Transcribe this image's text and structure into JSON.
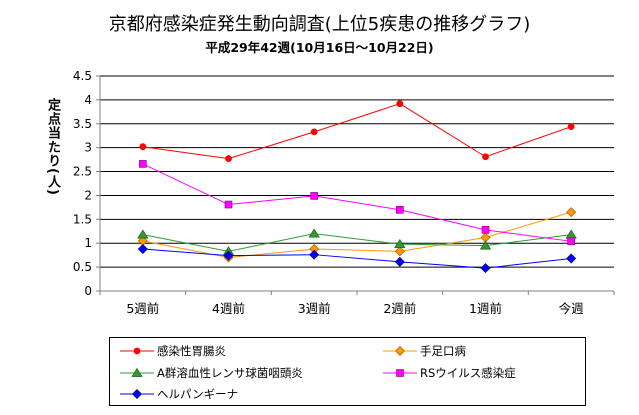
{
  "chart_data": {
    "type": "line",
    "title": "京都府感染症発生動向調査(上位5疾患の推移グラフ)",
    "subtitle": "平成29年42週(10月16日～10月22日)",
    "ylabel": "定点当たり(人)",
    "xlabel": "",
    "categories": [
      "5週前",
      "4週前",
      "3週前",
      "2週前",
      "1週前",
      "今週"
    ],
    "ylim": [
      0,
      4.5
    ],
    "yticks": [
      "0",
      "0.5",
      "1",
      "1.5",
      "2",
      "2.5",
      "3",
      "3.5",
      "4",
      "4.5"
    ],
    "grid": true,
    "legend_position": "bottom",
    "series": [
      {
        "name": "感染性胃腸炎",
        "color": "#ff0000",
        "marker": "circle",
        "values": [
          3.02,
          2.77,
          3.33,
          3.92,
          2.81,
          3.44
        ]
      },
      {
        "name": "手足口病",
        "color": "#ff9900",
        "marker": "diamond",
        "values": [
          1.05,
          0.7,
          0.88,
          0.83,
          1.12,
          1.65
        ]
      },
      {
        "name": "A群溶血性レンサ球菌咽頭炎",
        "color": "#339933",
        "marker": "triangle",
        "values": [
          1.18,
          0.83,
          1.2,
          0.98,
          0.95,
          1.18
        ]
      },
      {
        "name": "RSウイルス感染症",
        "color": "#ff00ff",
        "marker": "square",
        "values": [
          2.66,
          1.81,
          1.99,
          1.7,
          1.28,
          1.04
        ]
      },
      {
        "name": "ヘルパンギーナ",
        "color": "#0000ff",
        "marker": "diamond",
        "values": [
          0.88,
          0.74,
          0.76,
          0.61,
          0.48,
          0.68
        ]
      }
    ]
  }
}
